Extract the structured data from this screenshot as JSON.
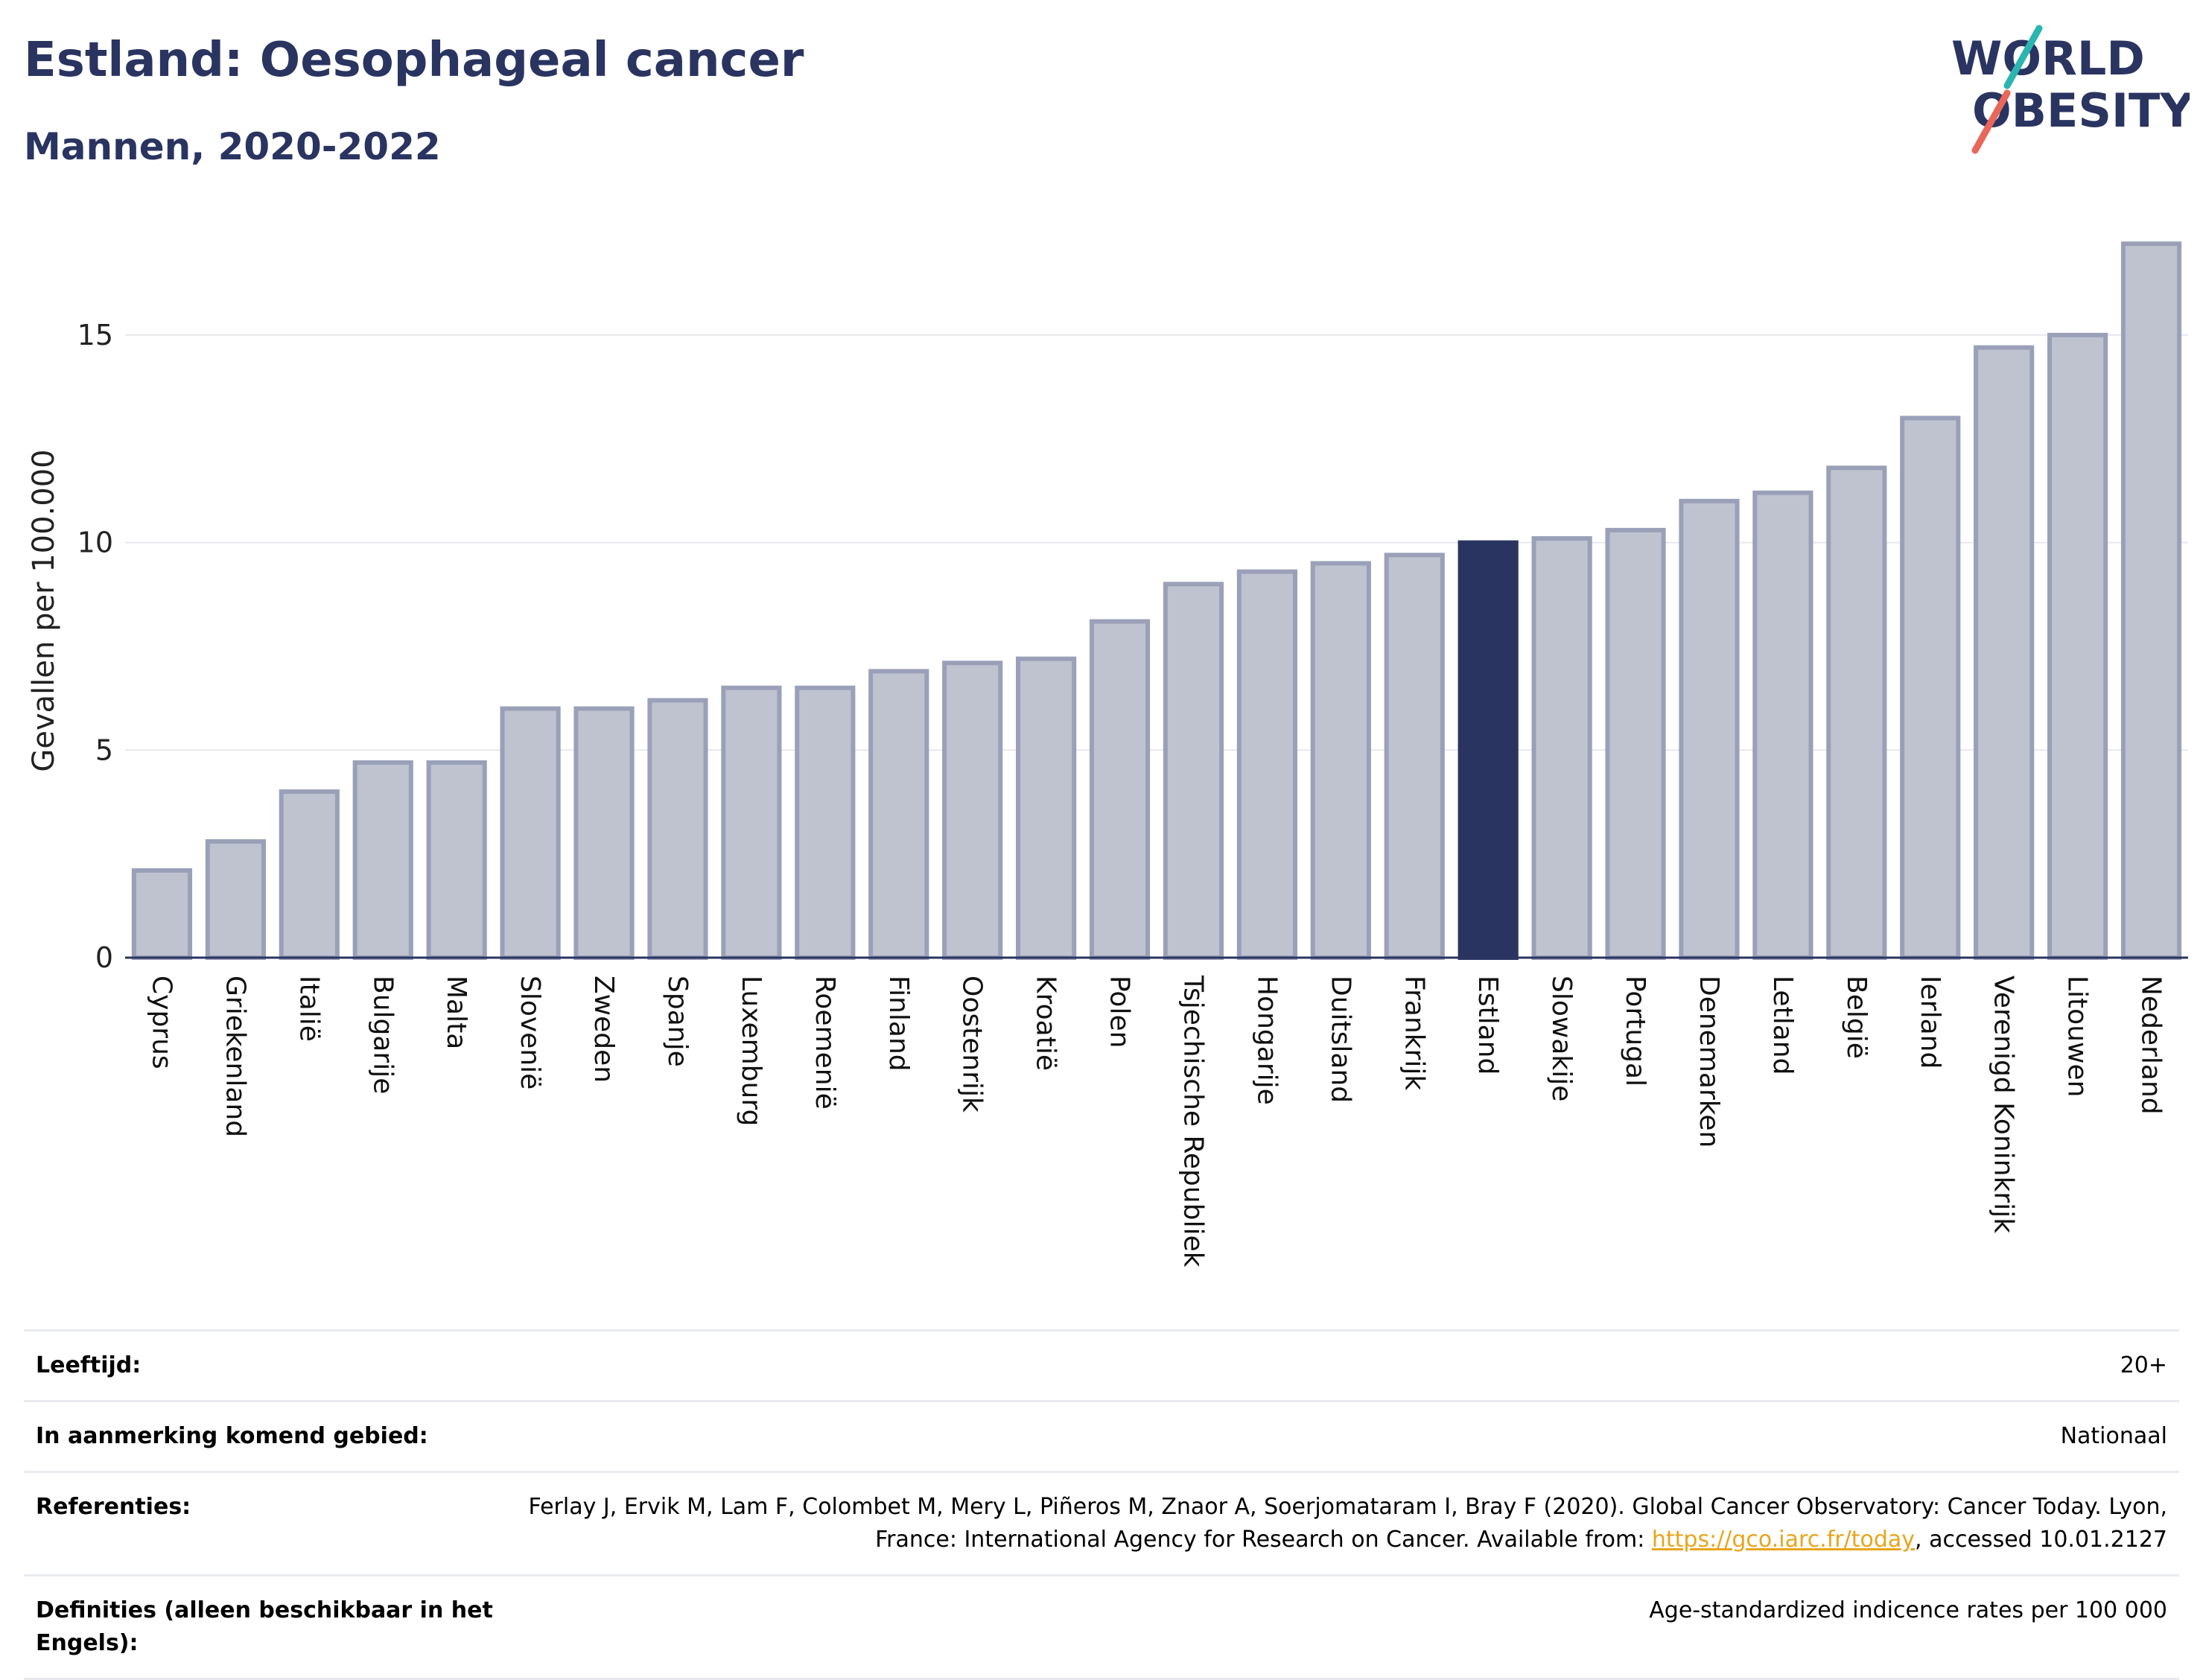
{
  "header": {
    "title": "Estland: Oesophageal cancer",
    "subtitle": "Mannen, 2020-2022"
  },
  "logo": {
    "line1": "WORLD",
    "line2": "OBESITY"
  },
  "colors": {
    "bar": "#bfc3d0",
    "bar_border": "#9aa0b8",
    "highlight": "#2a3461",
    "title": "#2a3461",
    "grid": "#e6e8ee",
    "link": "#e8a51c"
  },
  "chart_data": {
    "type": "bar",
    "title": "",
    "xlabel": "",
    "ylabel": "Gevallen per 100.000",
    "ylim": [
      0,
      17.6
    ],
    "yticks": [
      0,
      5,
      10,
      15
    ],
    "grid": true,
    "highlight": "Estland",
    "categories": [
      "Cyprus",
      "Griekenland",
      "Italië",
      "Bulgarije",
      "Malta",
      "Slovenië",
      "Zweden",
      "Spanje",
      "Luxemburg",
      "Roemenië",
      "Finland",
      "Oostenrijk",
      "Kroatië",
      "Polen",
      "Tsjechische Republiek",
      "Hongarije",
      "Duitsland",
      "Frankrijk",
      "Estland",
      "Slowakije",
      "Portugal",
      "Denemarken",
      "Letland",
      "België",
      "Ierland",
      "Verenigd Koninkrijk",
      "Litouwen",
      "Nederland"
    ],
    "values": [
      2.1,
      2.8,
      4.0,
      4.7,
      4.7,
      6.0,
      6.0,
      6.2,
      6.5,
      6.5,
      6.9,
      7.1,
      7.2,
      8.1,
      9.0,
      9.3,
      9.5,
      9.7,
      10.0,
      10.1,
      10.3,
      11.0,
      11.2,
      11.8,
      13.0,
      14.7,
      15.0,
      17.2
    ]
  },
  "meta": {
    "rows": [
      {
        "key": "Leeftijd:",
        "value": "20+"
      },
      {
        "key": "In aanmerking komend gebied:",
        "value": "Nationaal"
      },
      {
        "key": "Referenties:",
        "value_pre": "Ferlay J, Ervik M, Lam F, Colombet M, Mery L, Piñeros M, Znaor A, Soerjomataram I, Bray F (2020). Global Cancer Observatory: Cancer Today. Lyon, France: International Agency for Research on Cancer. Available from: ",
        "link": "https://gco.iarc.fr/today",
        "value_post": ", accessed 10.01.2127"
      },
      {
        "key": "Definities (alleen beschikbaar in het Engels):",
        "value": "Age-standardized indicence rates per 100 000"
      }
    ]
  }
}
